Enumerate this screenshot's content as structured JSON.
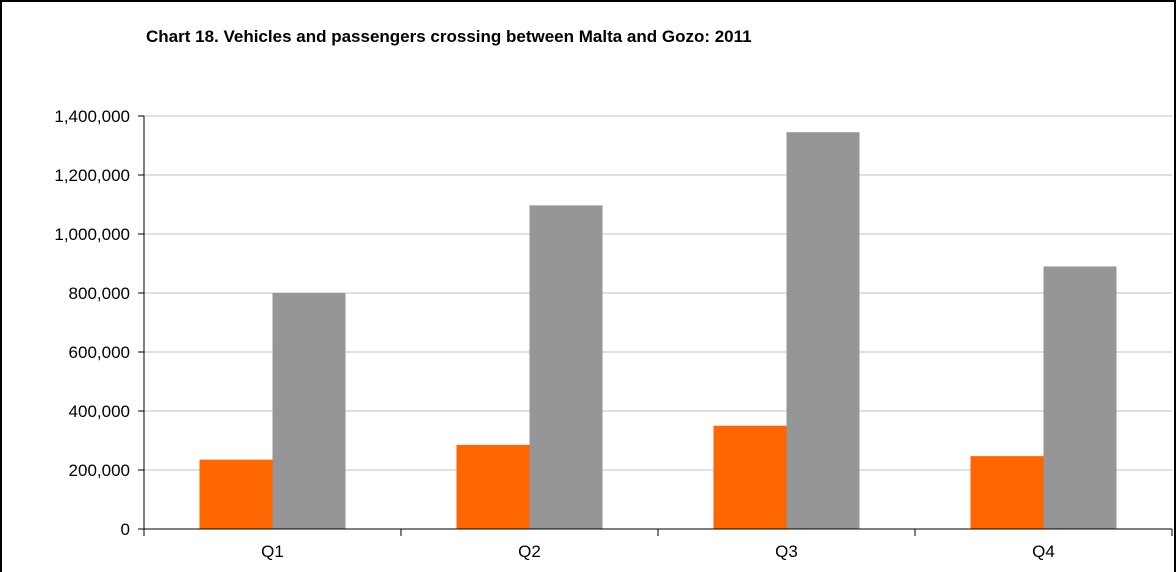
{
  "chart_data": {
    "type": "bar",
    "title": "Chart 18. Vehicles and passengers crossing between Malta and Gozo: 2011",
    "xlabel": "",
    "ylabel": "",
    "categories": [
      "Q1",
      "Q2",
      "Q3",
      "Q4"
    ],
    "series": [
      {
        "values": [
          235000,
          285000,
          350000,
          247000
        ],
        "color": "#ff6600"
      },
      {
        "values": [
          800000,
          1097000,
          1345000,
          890000
        ],
        "color": "#969696"
      }
    ],
    "ylim": [
      0,
      1400000
    ],
    "yticks": [
      0,
      200000,
      400000,
      600000,
      800000,
      1000000,
      1200000,
      1400000
    ],
    "ytick_labels": [
      "0",
      "200,000",
      "400,000",
      "600,000",
      "800,000",
      "1,000,000",
      "1,200,000",
      "1,400,000"
    ],
    "grid": true,
    "legend": "none"
  }
}
